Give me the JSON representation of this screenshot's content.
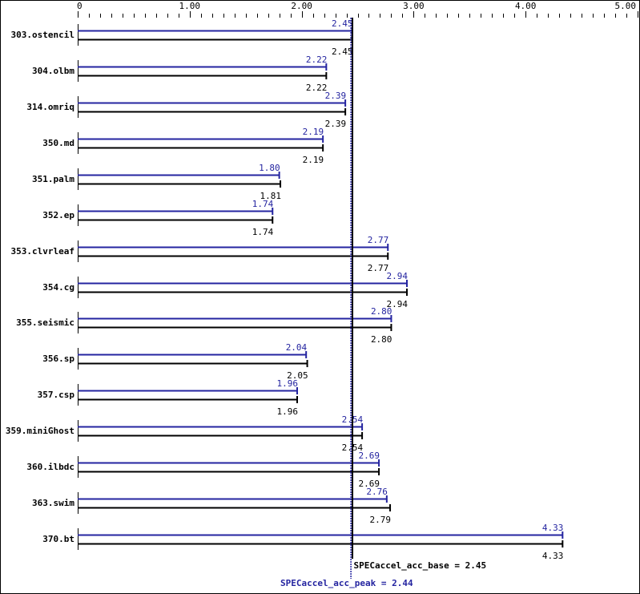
{
  "chart_data": {
    "type": "bar",
    "orientation": "horizontal",
    "title": "",
    "xlabel": "",
    "ylabel": "",
    "xlim": [
      0,
      5.0
    ],
    "x_ticks": [
      "0",
      "1.00",
      "2.00",
      "3.00",
      "4.00",
      "5.00"
    ],
    "x_tick_values": [
      0,
      1,
      2,
      3,
      4,
      5
    ],
    "minor_ticks_per_unit": 10,
    "grid": false,
    "legend": null,
    "categories": [
      "303.ostencil",
      "304.olbm",
      "314.omriq",
      "350.md",
      "351.palm",
      "352.ep",
      "353.clvrleaf",
      "354.cg",
      "355.seismic",
      "356.sp",
      "357.csp",
      "359.miniGhost",
      "360.ilbdc",
      "363.swim",
      "370.bt"
    ],
    "series": [
      {
        "name": "peak",
        "color": "#2424a0",
        "values": [
          2.45,
          2.22,
          2.39,
          2.19,
          1.8,
          1.74,
          2.77,
          2.94,
          2.8,
          2.04,
          1.96,
          2.54,
          2.69,
          2.76,
          4.33
        ],
        "labels": [
          "2.45",
          "2.22",
          "2.39",
          "2.19",
          "1.80",
          "1.74",
          "2.77",
          "2.94",
          "2.80",
          "2.04",
          "1.96",
          "2.54",
          "2.69",
          "2.76",
          "4.33"
        ]
      },
      {
        "name": "base",
        "color": "#000000",
        "values": [
          2.45,
          2.22,
          2.39,
          2.19,
          1.81,
          1.74,
          2.77,
          2.94,
          2.8,
          2.05,
          1.96,
          2.54,
          2.69,
          2.79,
          4.33
        ],
        "labels": [
          "2.45",
          "2.22",
          "2.39",
          "2.19",
          "1.81",
          "1.74",
          "2.77",
          "2.94",
          "2.80",
          "2.05",
          "1.96",
          "2.54",
          "2.69",
          "2.79",
          "4.33"
        ]
      }
    ],
    "reference_lines": [
      {
        "name": "SPECaccel_acc_base",
        "value": 2.45,
        "style": "solid",
        "color": "#000000",
        "label": "SPECaccel_acc_base = 2.45"
      },
      {
        "name": "SPECaccel_acc_peak",
        "value": 2.44,
        "style": "dotted",
        "color": "#2424a0",
        "label": "SPECaccel_acc_peak = 2.44"
      }
    ]
  },
  "summary": {
    "base_label": "SPECaccel_acc_base = 2.45",
    "peak_label": "SPECaccel_acc_peak = 2.44"
  }
}
